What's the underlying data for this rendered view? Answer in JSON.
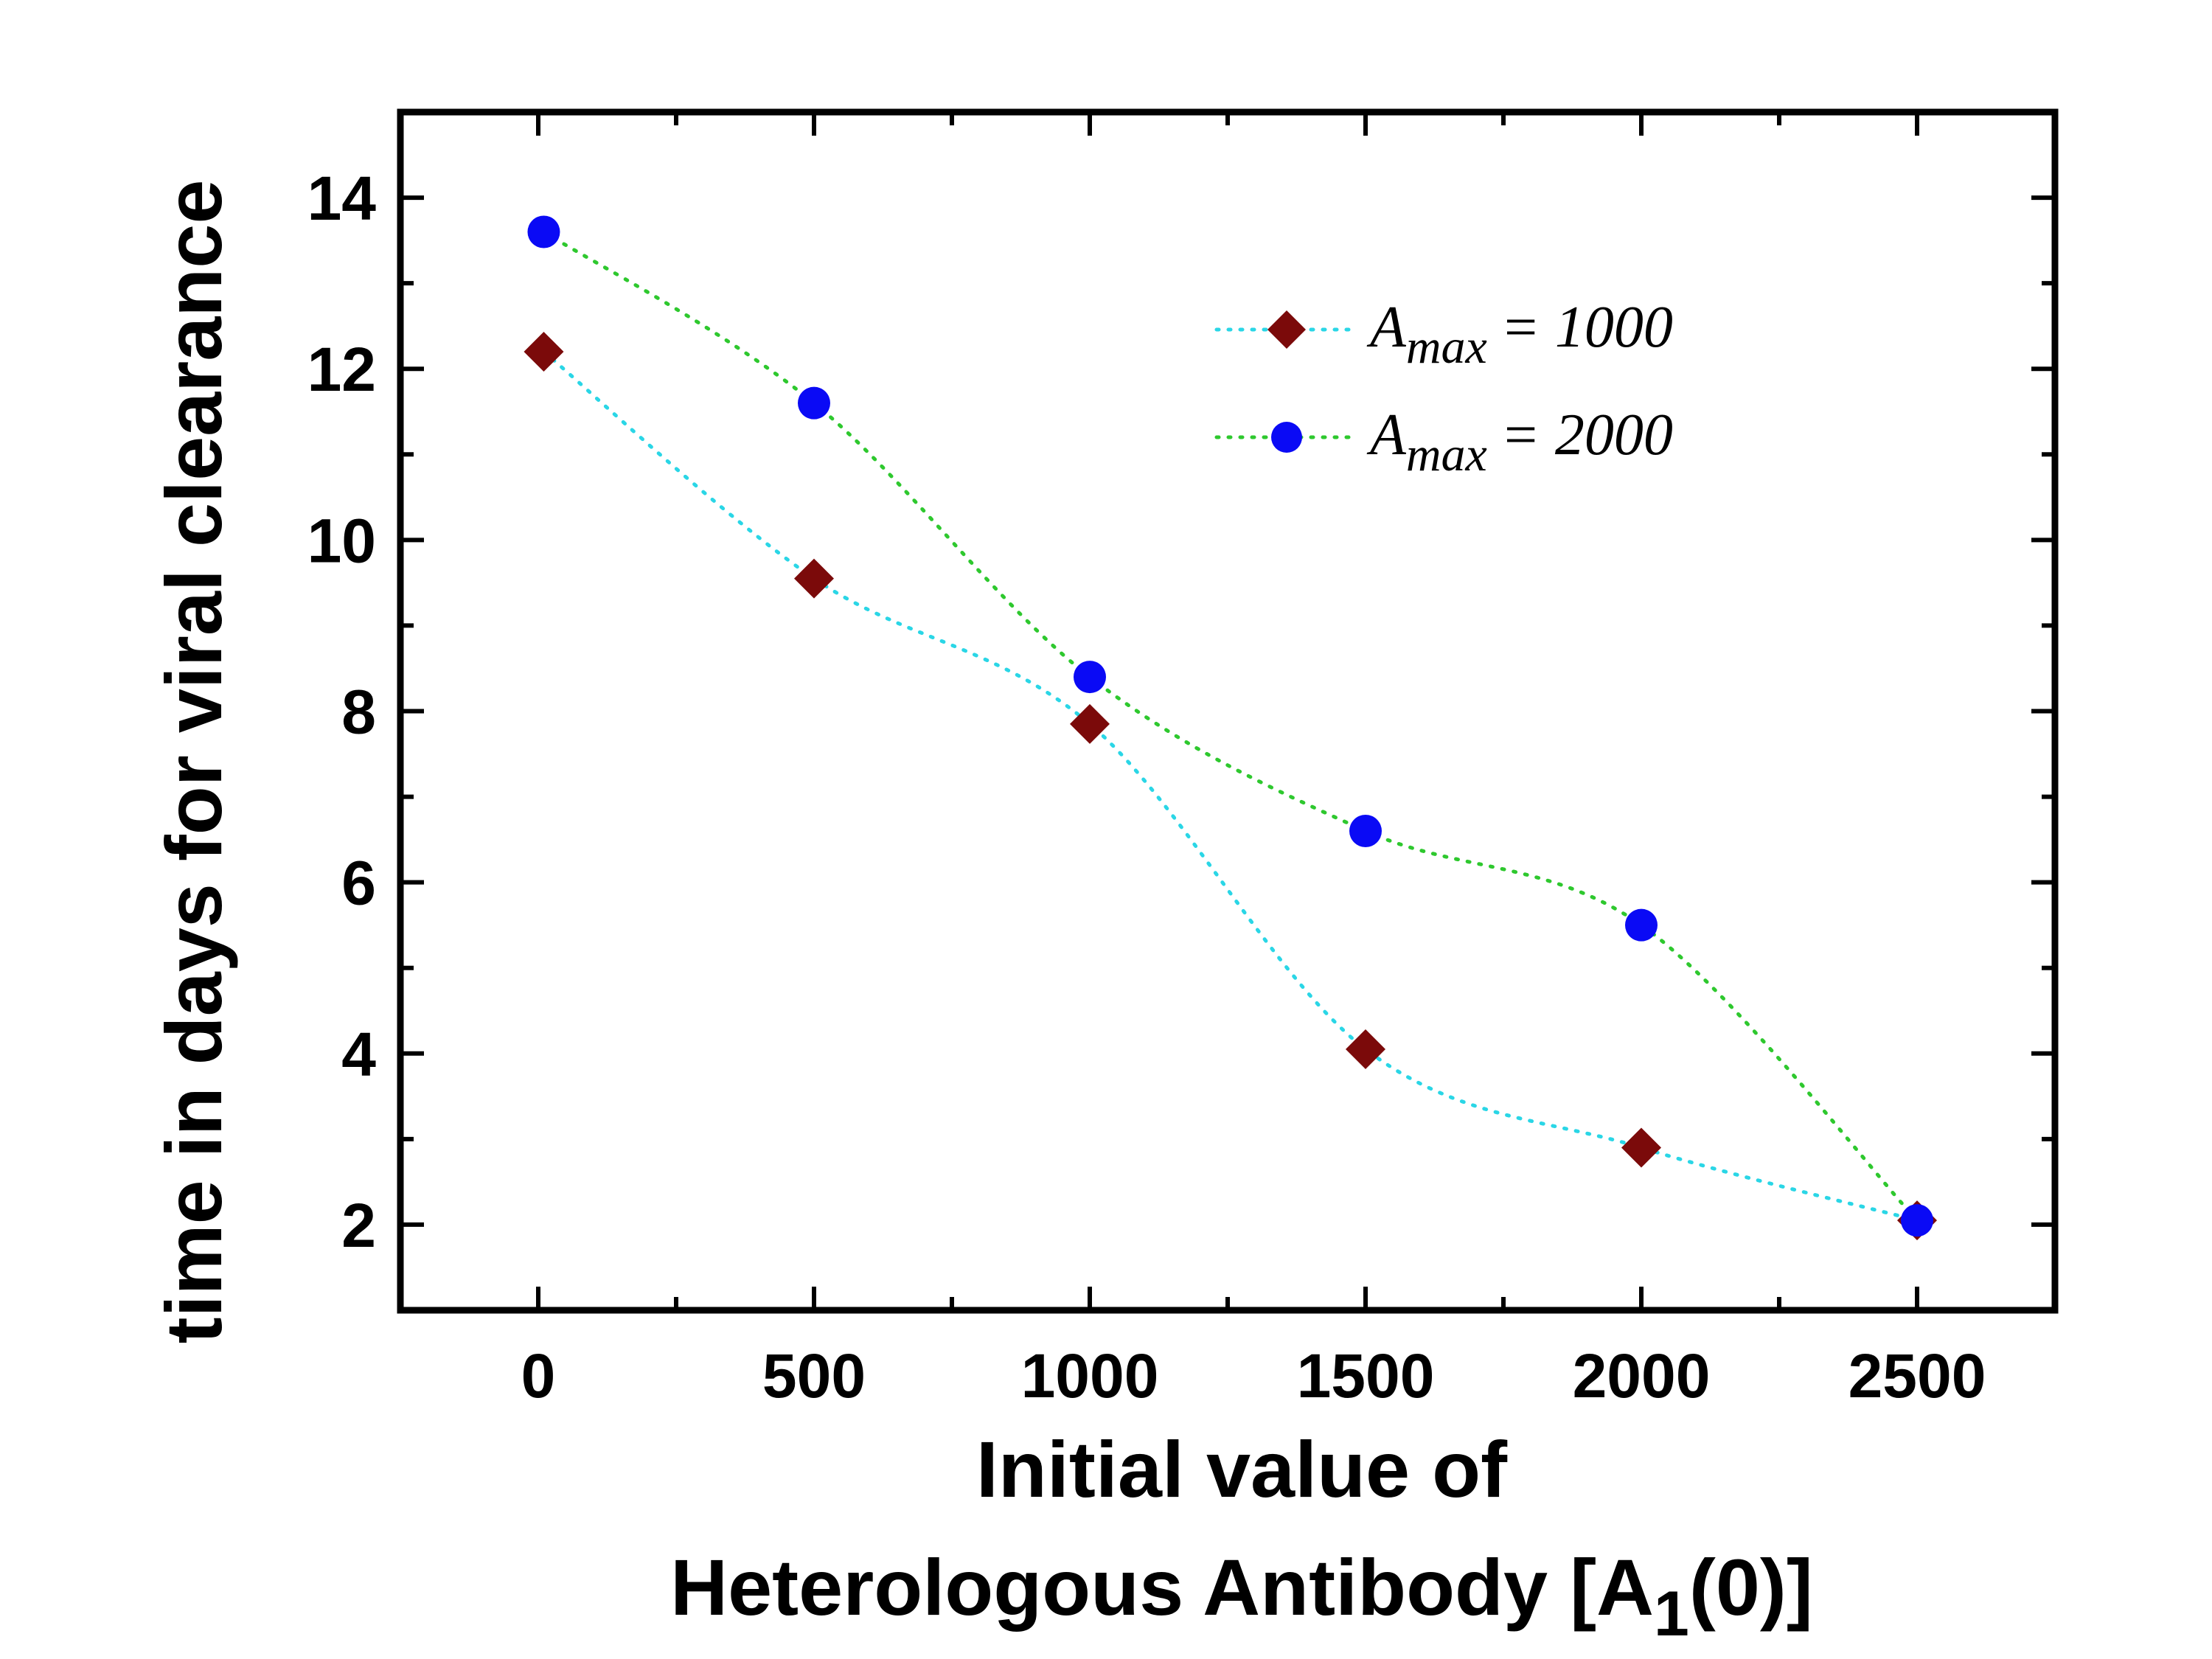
{
  "chart_data": {
    "type": "scatter",
    "xlabel_line1": "Initial value of",
    "xlabel_line2_main": "Heterologous Antibody [A",
    "xlabel_line2_sub": "1",
    "xlabel_line2_end": "(0)]",
    "ylabel": "time in days for viral clearance",
    "xlim": [
      -250,
      2750
    ],
    "ylim": [
      1,
      15
    ],
    "xticks": [
      0,
      500,
      1000,
      1500,
      2000,
      2500
    ],
    "yticks": [
      2,
      4,
      6,
      8,
      10,
      12,
      14
    ],
    "xtick_labels": [
      "0",
      "500",
      "1000",
      "1500",
      "2000",
      "2500"
    ],
    "ytick_labels": [
      "2",
      "4",
      "6",
      "8",
      "10",
      "12",
      "14"
    ],
    "legend_position": "top-right",
    "series": [
      {
        "legend_prefix": "A",
        "legend_sub": "max",
        "legend_value": "= 1000",
        "marker": "diamond",
        "color": "#7b0a0a",
        "line_color": "#2ad6e6",
        "x": [
          10,
          500,
          1000,
          1500,
          2000,
          2500
        ],
        "y": [
          12.2,
          9.55,
          7.85,
          4.05,
          2.9,
          2.05
        ]
      },
      {
        "legend_prefix": "A",
        "legend_sub": "max",
        "legend_value": "= 2000",
        "marker": "circle",
        "color": "#0a0af5",
        "line_color": "#2ec82e",
        "x": [
          10,
          500,
          1000,
          1500,
          2000,
          2500
        ],
        "y": [
          13.6,
          11.6,
          8.4,
          6.6,
          5.5,
          2.05
        ]
      }
    ]
  }
}
